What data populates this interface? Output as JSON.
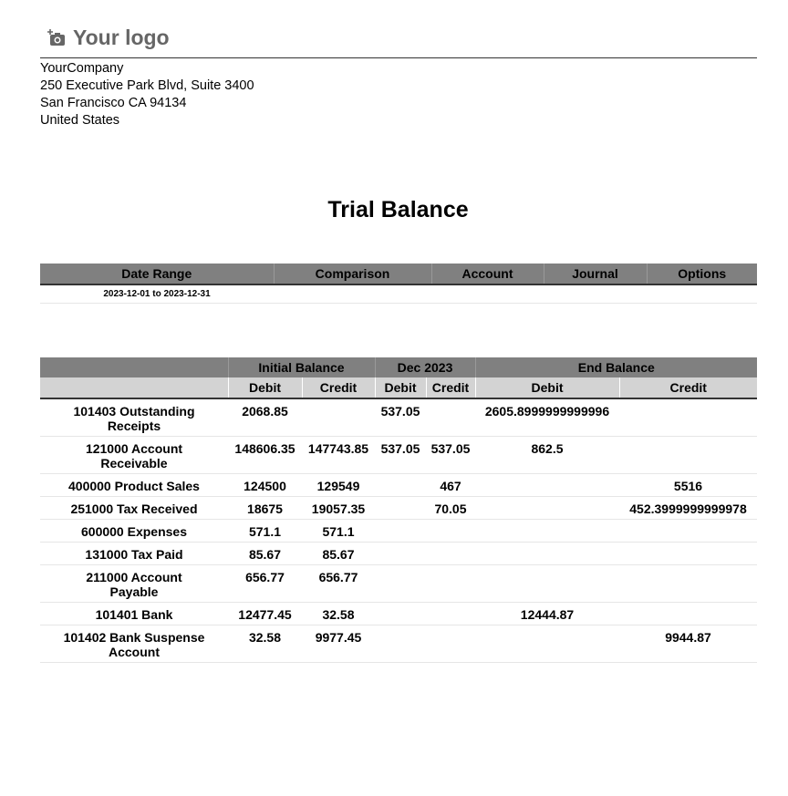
{
  "logo": {
    "text": "Your logo",
    "icon": "camera-plus-icon"
  },
  "company": {
    "name": "YourCompany",
    "address1": "250 Executive Park Blvd, Suite 3400",
    "address2": "San Francisco CA 94134",
    "country": "United States"
  },
  "report": {
    "title": "Trial Balance"
  },
  "filters": {
    "headers": [
      "Date Range",
      "Comparison",
      "Account",
      "Journal",
      "Options"
    ],
    "values": [
      "2023-12-01 to 2023-12-31",
      "",
      "",
      "",
      ""
    ]
  },
  "table": {
    "groups": [
      "",
      "Initial Balance",
      "Dec 2023",
      "End Balance"
    ],
    "subheaders": [
      "",
      "Debit",
      "Credit",
      "Debit",
      "Credit",
      "Debit",
      "Credit"
    ],
    "rows": [
      [
        "101403 Outstanding Receipts",
        "2068.85",
        "",
        "537.05",
        "",
        "2605.8999999999996",
        ""
      ],
      [
        "121000 Account Receivable",
        "148606.35",
        "147743.85",
        "537.05",
        "537.05",
        "862.5",
        ""
      ],
      [
        "400000 Product Sales",
        "124500",
        "129549",
        "",
        "467",
        "",
        "5516"
      ],
      [
        "251000 Tax Received",
        "18675",
        "19057.35",
        "",
        "70.05",
        "",
        "452.3999999999978"
      ],
      [
        "600000 Expenses",
        "571.1",
        "571.1",
        "",
        "",
        "",
        ""
      ],
      [
        "131000 Tax Paid",
        "85.67",
        "85.67",
        "",
        "",
        "",
        ""
      ],
      [
        "211000 Account Payable",
        "656.77",
        "656.77",
        "",
        "",
        "",
        ""
      ],
      [
        "101401 Bank",
        "12477.45",
        "32.58",
        "",
        "",
        "12444.87",
        ""
      ],
      [
        "101402 Bank Suspense Account",
        "32.58",
        "9977.45",
        "",
        "",
        "",
        "9944.87"
      ]
    ]
  }
}
